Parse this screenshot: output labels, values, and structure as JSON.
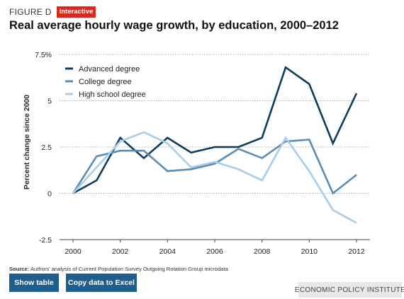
{
  "header": {
    "figure_label": "FIGURE D",
    "badge": "Interactive",
    "title": "Real average hourly wage growth, by education, 2000–2012"
  },
  "chart_data": {
    "type": "line",
    "title": "Real average hourly wage growth, by education, 2000–2012",
    "xlabel": "",
    "ylabel": "Percent change since 2000",
    "x": [
      2000,
      2001,
      2002,
      2003,
      2004,
      2005,
      2006,
      2007,
      2008,
      2009,
      2010,
      2011,
      2012
    ],
    "x_ticks": [
      "2000",
      "2002",
      "2004",
      "2006",
      "2008",
      "2010",
      "2012"
    ],
    "y_ticks": [
      "7.5%",
      "5",
      "2.5",
      "0",
      "-2.5"
    ],
    "ylim": [
      -2.5,
      7.5
    ],
    "grid": "horizontal dotted",
    "legend": "top-left",
    "series": [
      {
        "name": "Advanced degree",
        "color": "#0d3c5c",
        "values": [
          0,
          0.7,
          3.0,
          1.9,
          3.0,
          2.2,
          2.5,
          2.5,
          3.0,
          6.8,
          5.9,
          2.7,
          5.4
        ]
      },
      {
        "name": "College degree",
        "color": "#5a8db6",
        "values": [
          0,
          2.0,
          2.3,
          2.3,
          1.2,
          1.3,
          1.6,
          2.4,
          1.9,
          2.8,
          2.9,
          0.0,
          1.0
        ]
      },
      {
        "name": "High school degree",
        "color": "#a9cde9",
        "values": [
          0,
          1.4,
          2.8,
          3.3,
          2.7,
          1.4,
          1.7,
          1.3,
          0.7,
          3.0,
          1.2,
          -0.9,
          -1.6
        ]
      }
    ]
  },
  "footer": {
    "source_label": "Source:",
    "source_text": " Authors' analysis of Current Population Survey Outgoing Rotation Group microdata",
    "show_table": "Show table",
    "copy_excel": "Copy data to Excel",
    "org": "ECONOMIC POLICY INSTITUTE"
  }
}
